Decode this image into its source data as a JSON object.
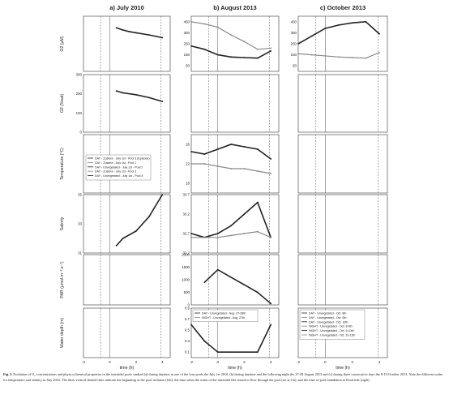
{
  "figure": {
    "column_titles": [
      "a) July 2010",
      "b) August 2013",
      "c) October 2013"
    ],
    "row_ylabels": [
      "O2 (µM)",
      "O2 (%sat)",
      "Temperature (°C)",
      "Salinity",
      "PAR (µmol.m⁻².s⁻¹)",
      "Water depth (m)"
    ],
    "xlabel": "time (h)",
    "legend_temp_a": [
      "DAY - Zostera - July 1st - Pool 3 (Episode)",
      "DAY - Zostera - July 1st - Pool 1",
      "DAY - Unvegetated - July 1st - Pool 2",
      "DAY - Zostera - July 1st - Pool 3",
      "DAY - Unvegetated - July 1st - Pool 4"
    ],
    "legend_depth_b": [
      "DAY - Unvegetated - Aug. 27-28th",
      "NIGHT - Unvegetated - Aug. 27th"
    ],
    "legend_depth_c": [
      "DAY - Unvegetated - Oct. 8th",
      "DAY - Unvegetated - Oct. 9th",
      "DAY - Unvegetated - Oct. 10th",
      "NIGHT - Unvegetated - Oct. 8-9th",
      "NIGHT - Unvegetated - Oct. 9-10th",
      "NIGHT - Unvegetated - Oct. 10-11th"
    ]
  },
  "chart_data": [
    {
      "panel": "O2 µM",
      "column": "a",
      "type": "line",
      "x": [
        0.5,
        1,
        1.5,
        2,
        2.5,
        3,
        3.5,
        4
      ],
      "series": [
        {
          "values": [
            395,
            375,
            360,
            350,
            340,
            330,
            318,
            305
          ]
        }
      ],
      "yticks": [],
      "xticks": [],
      "ylim": [
        0,
        500
      ]
    },
    {
      "panel": "O2 µM",
      "column": "b",
      "type": "line",
      "x": [
        -2,
        -1,
        0,
        1,
        2,
        3,
        4
      ],
      "series": [
        {
          "values": [
            230,
            200,
            150,
            130,
            125,
            120,
            185
          ]
        },
        {
          "values": [
            450,
            430,
            400,
            330,
            270,
            200,
            210
          ]
        }
      ],
      "yticks": [
        "450",
        "350",
        "250",
        "150",
        "50"
      ],
      "ylim": [
        0,
        500
      ]
    },
    {
      "panel": "O2 µM",
      "column": "c",
      "type": "line",
      "x": [
        -2,
        -1,
        0,
        1,
        2,
        3,
        4
      ],
      "series": [
        {
          "values": [
            250,
            320,
            390,
            420,
            440,
            450,
            340
          ]
        },
        {
          "values": [
            160,
            150,
            140,
            130,
            125,
            120,
            170
          ]
        }
      ],
      "yticks": [
        "450",
        "350",
        "250",
        "150",
        "50"
      ],
      "ylim": [
        0,
        500
      ]
    },
    {
      "panel": "O2 %sat",
      "column": "a",
      "type": "line",
      "x": [
        0.5,
        1,
        2,
        3,
        4
      ],
      "series": [
        {
          "values": [
            215,
            205,
            195,
            180,
            160
          ]
        }
      ],
      "yticks": [
        "300",
        "200",
        "100",
        "0"
      ],
      "ylim": [
        0,
        300
      ]
    },
    {
      "panel": "Temperature",
      "column": "b",
      "type": "line",
      "x": [
        -2,
        -1,
        0,
        1,
        2,
        3,
        4
      ],
      "series": [
        {
          "values": [
            24.5,
            24,
            25,
            26,
            25.5,
            25,
            23
          ]
        },
        {
          "values": [
            22,
            22,
            21.5,
            21,
            21,
            20.5,
            20
          ]
        }
      ],
      "yticks": [
        "26",
        "22",
        "18"
      ],
      "ylim": [
        16,
        28
      ]
    },
    {
      "panel": "Salinity",
      "column": "a",
      "type": "line",
      "x": [
        0.5,
        1,
        2,
        3,
        4
      ],
      "series": [
        {
          "values": [
            31.5,
            32,
            32.5,
            33.5,
            35
          ]
        }
      ],
      "yticks": [
        "35",
        "33",
        "31"
      ],
      "ylim": [
        31,
        35
      ]
    },
    {
      "panel": "Salinity",
      "column": "b",
      "type": "line",
      "x": [
        -2,
        -1,
        0,
        1,
        2,
        3,
        4
      ],
      "series": [
        {
          "values": [
            32.7,
            32.6,
            32.7,
            32.9,
            33.2,
            33.5,
            32.6
          ]
        },
        {
          "values": [
            32.6,
            32.6,
            32.6,
            32.65,
            32.7,
            32.75,
            32.6
          ]
        }
      ],
      "yticks": [
        "33.7",
        "33.2",
        "32.7",
        "32.2"
      ],
      "ylim": [
        32.2,
        33.7
      ]
    },
    {
      "panel": "PAR",
      "column": "b",
      "type": "line",
      "x": [
        -1,
        0,
        1,
        2,
        3,
        4
      ],
      "series": [
        {
          "values": [
            900,
            1400,
            1100,
            800,
            500,
            50
          ]
        }
      ],
      "yticks": [
        "2000",
        "1500",
        "1000",
        "500",
        "0"
      ],
      "ylim": [
        0,
        2000
      ]
    },
    {
      "panel": "Water depth",
      "column": "b",
      "type": "line",
      "x": [
        -2,
        -1,
        0,
        1,
        2,
        3,
        4
      ],
      "series": [
        {
          "values": [
            0.6,
            0.3,
            0.1,
            0.1,
            0.1,
            0.1,
            0.6
          ]
        }
      ],
      "yticks": [
        "0.9",
        "0.7",
        "0.5",
        "0.3",
        "0.1"
      ],
      "ylim": [
        0,
        0.9
      ]
    }
  ],
  "caption": {
    "label": "Fig. 2.",
    "text": "Evolution of O₂ concentrations and physicochemical properties in the intertidal pools studied (a) during daytime in one of the four pools the July 1st 2010, (b) during daytime and the following night the 27-28 August 2013 and (c) during three consecutive days the 8-10 October 2013. Note the different scales for temperature and salinity in July 2010. The three vertical dashed lines indicate the beginning of the pool isolation (left), the time when the water of the intertidal flat ceased to flow through the pool (set at 0 h), and the time of pool inundation at flood tide (right)."
  }
}
